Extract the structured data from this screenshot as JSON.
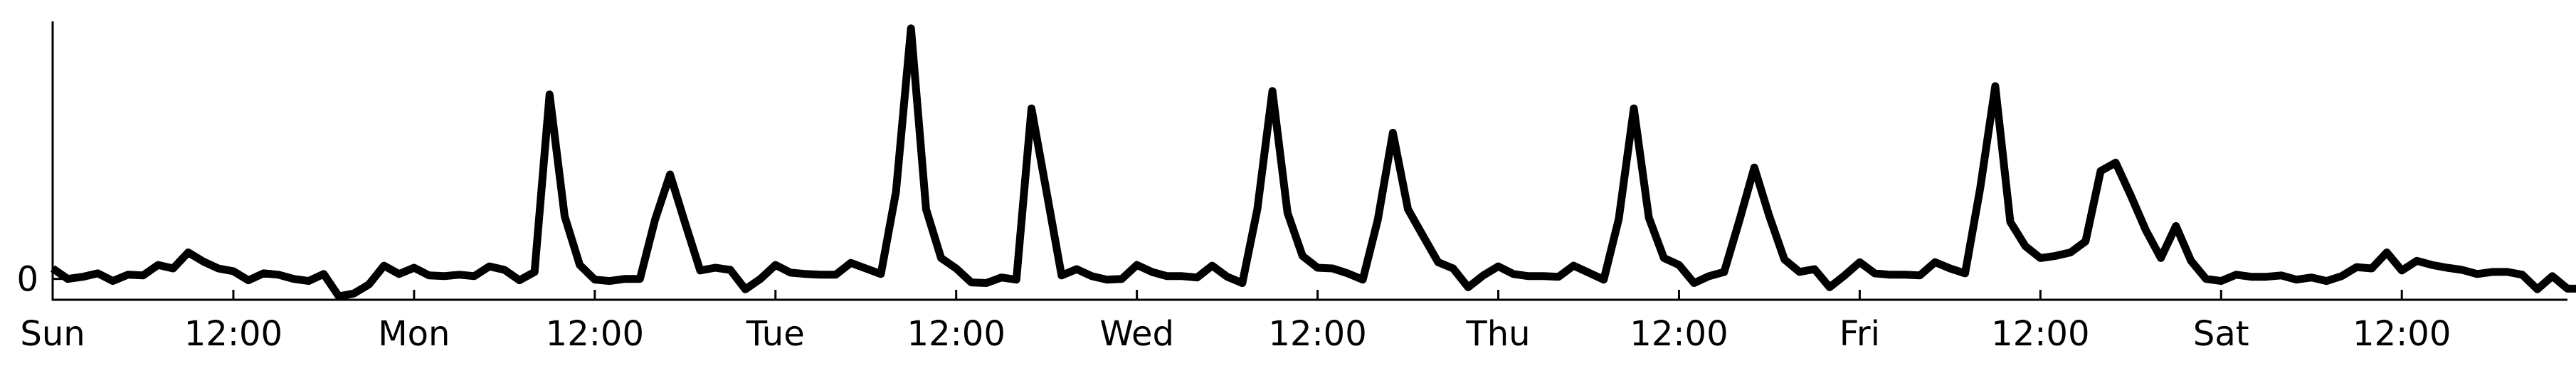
{
  "colors": {
    "line": "#000000",
    "axis": "#000000",
    "background": "#ffffff"
  },
  "chart_data": {
    "type": "line",
    "title": "",
    "xlabel": "",
    "ylabel": "",
    "grid": false,
    "legend": "none",
    "xlim": [
      0,
      167
    ],
    "ylim": [
      -3,
      37
    ],
    "x_ticks": [
      {
        "x": 0,
        "label": "Sun"
      },
      {
        "x": 12,
        "label": "12:00"
      },
      {
        "x": 24,
        "label": "Mon"
      },
      {
        "x": 36,
        "label": "12:00"
      },
      {
        "x": 48,
        "label": "Tue"
      },
      {
        "x": 60,
        "label": "12:00"
      },
      {
        "x": 72,
        "label": "Wed"
      },
      {
        "x": 84,
        "label": "12:00"
      },
      {
        "x": 96,
        "label": "Thu"
      },
      {
        "x": 108,
        "label": "12:00"
      },
      {
        "x": 120,
        "label": "Fri"
      },
      {
        "x": 132,
        "label": "12:00"
      },
      {
        "x": 144,
        "label": "Sat"
      },
      {
        "x": 156,
        "label": "12:00"
      }
    ],
    "y_ticks": [
      {
        "y": 0,
        "label": "0"
      }
    ],
    "series": [
      {
        "y": [
          1.5,
          0,
          0.3,
          0.8,
          -0.3,
          0.6,
          0.5,
          2,
          1.5,
          3.8,
          2.5,
          1.5,
          1.1,
          -0.2,
          0.8,
          0.6,
          0,
          -0.3,
          0.7,
          -2.5,
          -2.1,
          -0.8,
          1.9,
          0.7,
          1.6,
          0.5,
          0.4,
          0.6,
          0.4,
          1.8,
          1.3,
          -0.2,
          1,
          26.5,
          9,
          2,
          -0.1,
          -0.3,
          0,
          0,
          8.5,
          15,
          8,
          1.2,
          1.6,
          1.3,
          -1.5,
          0,
          2,
          0.9,
          0.7,
          0.6,
          0.6,
          2.3,
          1.5,
          0.7,
          12.5,
          36,
          10,
          3,
          1.5,
          -0.5,
          -0.6,
          0.2,
          -0.1,
          24.5,
          12.5,
          0.5,
          1.4,
          0.4,
          -0.1,
          0,
          2,
          1,
          0.4,
          0.4,
          0.2,
          1.9,
          0.3,
          -0.6,
          10,
          27,
          9.5,
          3.3,
          1.6,
          1.5,
          0.8,
          -0.1,
          8.5,
          21,
          10,
          6.2,
          2.4,
          1.5,
          -1.2,
          0.5,
          1.8,
          0.7,
          0.4,
          0.4,
          0.3,
          1.9,
          0.9,
          -0.1,
          8.6,
          24.5,
          8.8,
          3,
          2,
          -0.6,
          0.4,
          1,
          8.3,
          16,
          9,
          2.8,
          1,
          1.4,
          -1.2,
          0.5,
          2.4,
          0.8,
          0.6,
          0.6,
          0.5,
          2.4,
          1.5,
          0.8,
          13,
          27.7,
          8.2,
          4.7,
          3,
          3.3,
          3.8,
          5.4,
          15.5,
          16.7,
          12,
          7,
          3,
          7.6,
          2.6,
          0,
          -0.3,
          0.6,
          0.3,
          0.3,
          0.5,
          -0.1,
          0.2,
          -0.3,
          0.4,
          1.7,
          1.5,
          3.8,
          1.2,
          2.6,
          2,
          1.6,
          1.3,
          0.7,
          1,
          1,
          0.6,
          -1.5,
          0.4,
          -1.4,
          -1.4
        ]
      }
    ]
  }
}
